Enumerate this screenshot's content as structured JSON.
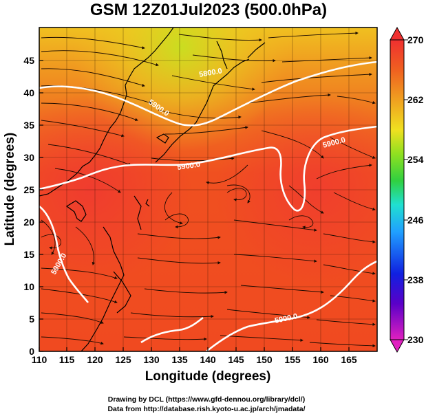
{
  "title": "GSM 12Z01Jul2023 (500.0hPa)",
  "x_axis": {
    "label": "Longitude (degrees)",
    "ticks": [
      "110",
      "115",
      "120",
      "125",
      "130",
      "135",
      "140",
      "145",
      "150",
      "155",
      "160",
      "165"
    ],
    "range": [
      110,
      170
    ]
  },
  "y_axis": {
    "label": "Latitude  (degrees)",
    "ticks": [
      "0",
      "5",
      "10",
      "15",
      "20",
      "25",
      "30",
      "35",
      "40",
      "45"
    ],
    "range": [
      0,
      50
    ]
  },
  "colorbar": {
    "ticks": [
      "230",
      "238",
      "246",
      "254",
      "262",
      "270"
    ],
    "range": [
      230,
      270
    ],
    "colors": [
      "#e020c0",
      "#5a00c8",
      "#1020e0",
      "#20a0ff",
      "#20e0d0",
      "#30d040",
      "#90e020",
      "#f0e020",
      "#f0a020",
      "#f06020",
      "#f03030"
    ]
  },
  "contours": [
    {
      "label": "5900.0"
    },
    {
      "label": "5900.0"
    },
    {
      "label": "5900.0"
    },
    {
      "label": "5900.0"
    },
    {
      "label": "5800.0"
    },
    {
      "label": "5900.0"
    }
  ],
  "credits": {
    "line1": "Drawing by DCL (https://www.gfd-dennou.org/library/dcl/)",
    "line2": "Data from http://database.rish.kyoto-u.ac.jp/arch/jmadata/"
  },
  "colors": {
    "background_warm": "#f05a24",
    "contour": "#ffffff",
    "streamline": "#1a0a00"
  }
}
